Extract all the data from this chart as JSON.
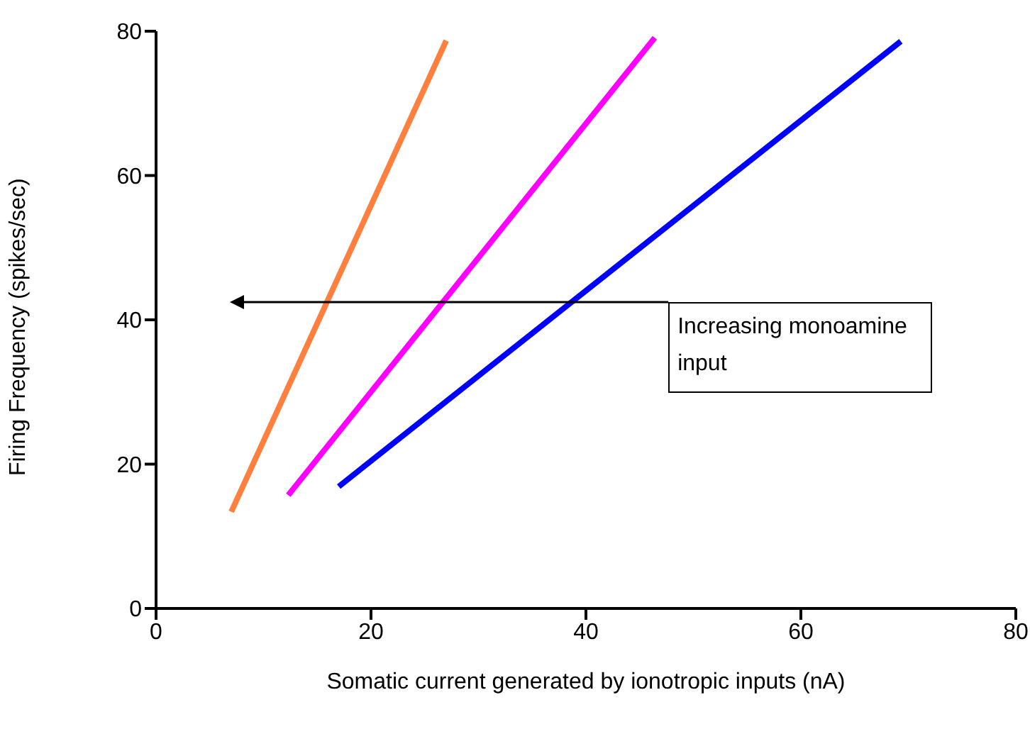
{
  "chart_data": {
    "type": "line",
    "xlabel": "Somatic current generated by ionotropic inputs (nA)",
    "ylabel": "Firing Frequency (spikes/sec)",
    "xlim": [
      0,
      80
    ],
    "xticks": [
      0,
      20,
      40,
      60,
      80
    ],
    "ylim": [
      0,
      80
    ],
    "yticks": [
      0,
      20,
      40,
      60,
      80
    ],
    "grid": false,
    "series": [
      {
        "color": "#ff7f3f",
        "x": [
          7.0,
          27.0
        ],
        "values": [
          13.4,
          78.7
        ]
      },
      {
        "color": "#ff00ff",
        "x": [
          12.3,
          46.4
        ],
        "values": [
          15.7,
          79.1
        ]
      },
      {
        "color": "#0000ff",
        "x": [
          17.0,
          69.3
        ],
        "values": [
          16.9,
          78.6
        ]
      }
    ],
    "annotations": [
      "Increasing monoamine input"
    ]
  }
}
